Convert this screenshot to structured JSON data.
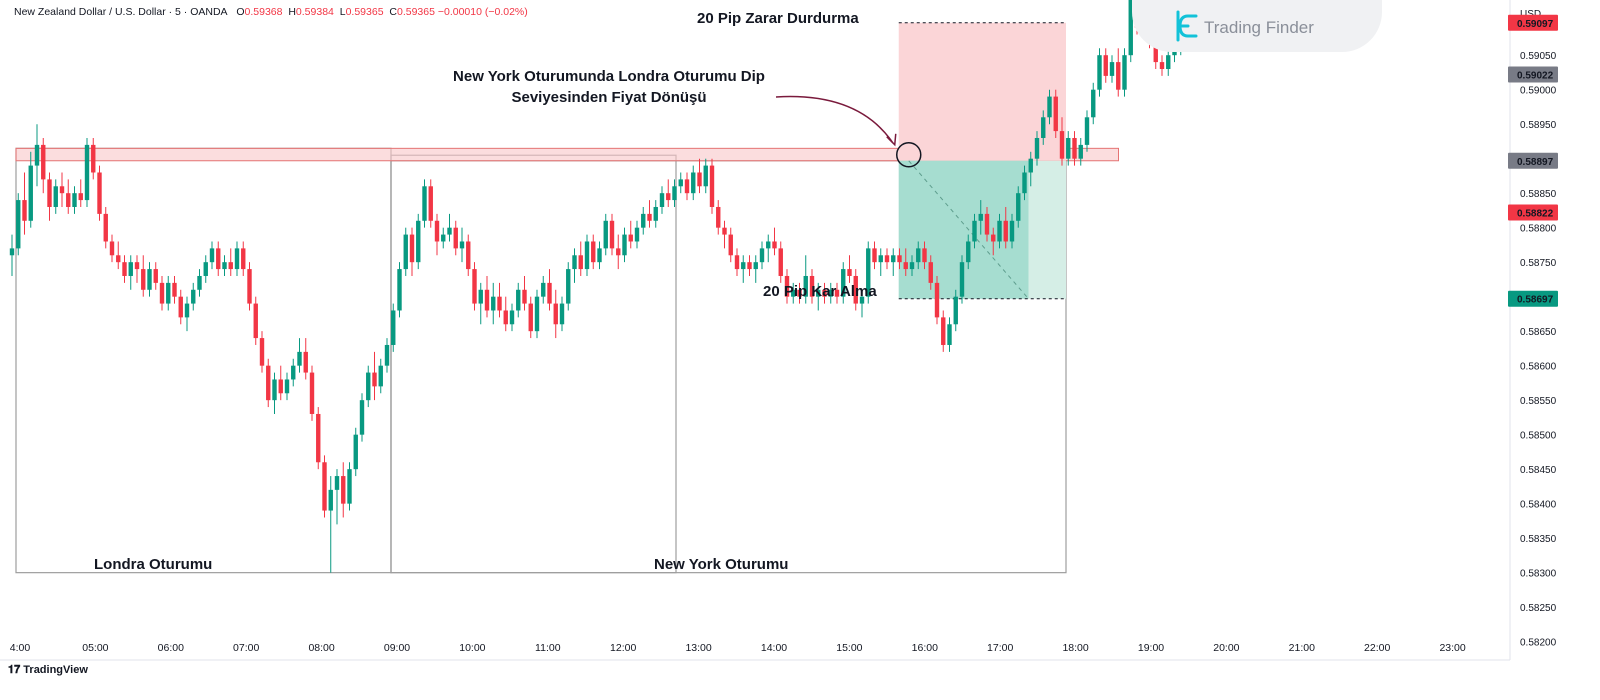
{
  "header": {
    "symbol": "New Zealand Dollar / U.S. Dollar · 5 · OANDA",
    "o_key": "O",
    "o_val": "0.59368",
    "h_key": "H",
    "h_val": "0.59384",
    "l_key": "L",
    "l_val": "0.59365",
    "c_key": "C",
    "c_val": "0.59365 −0.00010 (−0.02%)"
  },
  "brand": {
    "name": "Trading Finder"
  },
  "footer": {
    "logo_text": "TradingView"
  },
  "annotations": {
    "stop_loss": "20 Pip Zarar Durdurma",
    "take_profit": "20 Pip Kar Alma",
    "reversal_line1": "New York Oturumunda Londra Oturumu Dip",
    "reversal_line2": "Seviyesinden Fiyat Dönüşü",
    "london_session": "Londra Oturumu",
    "ny_session": "New York Oturumu"
  },
  "chart_data": {
    "type": "candlestick",
    "symbol": "NZDUSD",
    "timeframe": "5",
    "currency": "USD",
    "ylim": [
      0.58185,
      0.5913
    ],
    "y_ticks": [
      "0.59050",
      "0.59000",
      "0.58950",
      "0.58850",
      "0.58800",
      "0.58750",
      "0.58650",
      "0.58600",
      "0.58550",
      "0.58500",
      "0.58450",
      "0.58400",
      "0.58350",
      "0.58300",
      "0.58250",
      "0.58200"
    ],
    "x_ticks": [
      "4:00",
      "05:00",
      "06:00",
      "07:00",
      "08:00",
      "09:00",
      "10:00",
      "11:00",
      "12:00",
      "13:00",
      "14:00",
      "15:00",
      "16:00",
      "17:00",
      "18:00",
      "19:00",
      "20:00",
      "21:00",
      "22:00",
      "23:00"
    ],
    "price_labels": [
      {
        "value": "0.59097",
        "color": "#f23645"
      },
      {
        "value": "0.59022",
        "color": "#787b86"
      },
      {
        "value": "0.58897",
        "color": "#787b86"
      },
      {
        "value": "0.58822",
        "color": "#f23645"
      },
      {
        "value": "0.58697",
        "color": "#089981"
      }
    ],
    "levels": {
      "london_low_zone": [
        0.58897,
        0.58915
      ],
      "entry": 0.58897,
      "stop_loss": 0.59097,
      "take_profit": 0.58697
    },
    "sessions": [
      {
        "name": "Londra Oturumu",
        "from": "04:00",
        "to": "09:00"
      },
      {
        "name": "New York Oturumu",
        "from": "09:00",
        "to": "18:00"
      }
    ],
    "candles": [
      [
        0.5876,
        0.5879,
        0.5873,
        0.5877
      ],
      [
        0.5877,
        0.5885,
        0.5876,
        0.5884
      ],
      [
        0.5884,
        0.5888,
        0.5879,
        0.5881
      ],
      [
        0.5881,
        0.5891,
        0.588,
        0.5889
      ],
      [
        0.5889,
        0.5895,
        0.5886,
        0.5892
      ],
      [
        0.5892,
        0.5893,
        0.5885,
        0.5887
      ],
      [
        0.5887,
        0.5888,
        0.5881,
        0.5883
      ],
      [
        0.5883,
        0.5887,
        0.5882,
        0.5886
      ],
      [
        0.5886,
        0.5888,
        0.5883,
        0.5885
      ],
      [
        0.5885,
        0.5887,
        0.5882,
        0.5883
      ],
      [
        0.5883,
        0.5886,
        0.5882,
        0.5885
      ],
      [
        0.5885,
        0.5887,
        0.5883,
        0.5884
      ],
      [
        0.5884,
        0.5893,
        0.5883,
        0.5892
      ],
      [
        0.5892,
        0.5893,
        0.5887,
        0.5888
      ],
      [
        0.5888,
        0.5889,
        0.5881,
        0.5882
      ],
      [
        0.5882,
        0.5883,
        0.5877,
        0.5878
      ],
      [
        0.5878,
        0.5879,
        0.5875,
        0.5876
      ],
      [
        0.5876,
        0.5878,
        0.5874,
        0.5875
      ],
      [
        0.5875,
        0.5876,
        0.5872,
        0.5873
      ],
      [
        0.5873,
        0.5876,
        0.5871,
        0.5875
      ],
      [
        0.5875,
        0.5876,
        0.5872,
        0.5874
      ],
      [
        0.5874,
        0.5876,
        0.587,
        0.5871
      ],
      [
        0.5871,
        0.5875,
        0.587,
        0.5874
      ],
      [
        0.5874,
        0.5875,
        0.5871,
        0.5872
      ],
      [
        0.5872,
        0.5873,
        0.5868,
        0.5869
      ],
      [
        0.5869,
        0.5873,
        0.5868,
        0.5872
      ],
      [
        0.5872,
        0.5873,
        0.5869,
        0.587
      ],
      [
        0.587,
        0.5871,
        0.5866,
        0.5867
      ],
      [
        0.5867,
        0.587,
        0.5865,
        0.5869
      ],
      [
        0.5869,
        0.5872,
        0.5868,
        0.5871
      ],
      [
        0.5871,
        0.5874,
        0.587,
        0.5873
      ],
      [
        0.5873,
        0.5876,
        0.5872,
        0.5875
      ],
      [
        0.5875,
        0.5878,
        0.5874,
        0.5877
      ],
      [
        0.5877,
        0.5878,
        0.5873,
        0.5874
      ],
      [
        0.5874,
        0.5876,
        0.5873,
        0.5875
      ],
      [
        0.5875,
        0.5877,
        0.5873,
        0.5874
      ],
      [
        0.5874,
        0.5878,
        0.5873,
        0.5877
      ],
      [
        0.5877,
        0.5878,
        0.5873,
        0.5874
      ],
      [
        0.5874,
        0.5875,
        0.5868,
        0.5869
      ],
      [
        0.5869,
        0.587,
        0.5863,
        0.5864
      ],
      [
        0.5864,
        0.5865,
        0.5859,
        0.586
      ],
      [
        0.586,
        0.5861,
        0.5854,
        0.5855
      ],
      [
        0.5855,
        0.5859,
        0.5853,
        0.5858
      ],
      [
        0.5858,
        0.586,
        0.5855,
        0.5856
      ],
      [
        0.5856,
        0.5859,
        0.5855,
        0.5858
      ],
      [
        0.5858,
        0.5861,
        0.5857,
        0.586
      ],
      [
        0.586,
        0.5864,
        0.5859,
        0.5862
      ],
      [
        0.5862,
        0.5864,
        0.5858,
        0.5859
      ],
      [
        0.5859,
        0.586,
        0.5852,
        0.5853
      ],
      [
        0.5853,
        0.5854,
        0.5845,
        0.5846
      ],
      [
        0.5846,
        0.5847,
        0.5838,
        0.5839
      ],
      [
        0.5839,
        0.5844,
        0.583,
        0.5842
      ],
      [
        0.5842,
        0.5845,
        0.5837,
        0.5844
      ],
      [
        0.5844,
        0.5846,
        0.5838,
        0.584
      ],
      [
        0.584,
        0.5846,
        0.5839,
        0.5845
      ],
      [
        0.5845,
        0.5851,
        0.5844,
        0.585
      ],
      [
        0.585,
        0.5856,
        0.5849,
        0.5855
      ],
      [
        0.5855,
        0.586,
        0.5854,
        0.5859
      ],
      [
        0.5859,
        0.5862,
        0.5855,
        0.5857
      ],
      [
        0.5857,
        0.5861,
        0.5856,
        0.586
      ],
      [
        0.586,
        0.5864,
        0.5859,
        0.5863
      ],
      [
        0.5863,
        0.5869,
        0.5862,
        0.5868
      ],
      [
        0.5868,
        0.5875,
        0.5867,
        0.5874
      ],
      [
        0.5874,
        0.588,
        0.5873,
        0.5879
      ],
      [
        0.5879,
        0.588,
        0.5873,
        0.5875
      ],
      [
        0.5875,
        0.5882,
        0.5874,
        0.5881
      ],
      [
        0.5881,
        0.5887,
        0.588,
        0.5886
      ],
      [
        0.5886,
        0.5887,
        0.588,
        0.5881
      ],
      [
        0.5881,
        0.5882,
        0.5876,
        0.5878
      ],
      [
        0.5878,
        0.588,
        0.5877,
        0.5879
      ],
      [
        0.5879,
        0.5882,
        0.5878,
        0.588
      ],
      [
        0.588,
        0.5881,
        0.5876,
        0.5877
      ],
      [
        0.5877,
        0.588,
        0.5875,
        0.5878
      ],
      [
        0.5878,
        0.5879,
        0.5873,
        0.5874
      ],
      [
        0.5874,
        0.5875,
        0.5868,
        0.5869
      ],
      [
        0.5869,
        0.5872,
        0.5866,
        0.5871
      ],
      [
        0.5871,
        0.5873,
        0.5867,
        0.5868
      ],
      [
        0.5868,
        0.5872,
        0.5866,
        0.587
      ],
      [
        0.587,
        0.5872,
        0.5867,
        0.5868
      ],
      [
        0.5868,
        0.587,
        0.5865,
        0.5866
      ],
      [
        0.5866,
        0.5869,
        0.5865,
        0.5868
      ],
      [
        0.5868,
        0.5872,
        0.5867,
        0.5871
      ],
      [
        0.5871,
        0.5873,
        0.5868,
        0.5869
      ],
      [
        0.5869,
        0.587,
        0.5864,
        0.5865
      ],
      [
        0.5865,
        0.5871,
        0.5864,
        0.587
      ],
      [
        0.587,
        0.5873,
        0.5869,
        0.5872
      ],
      [
        0.5872,
        0.5874,
        0.5868,
        0.5869
      ],
      [
        0.5869,
        0.5871,
        0.5864,
        0.5866
      ],
      [
        0.5866,
        0.587,
        0.5865,
        0.5869
      ],
      [
        0.5869,
        0.5875,
        0.5868,
        0.5874
      ],
      [
        0.5874,
        0.5877,
        0.5872,
        0.5876
      ],
      [
        0.5876,
        0.5878,
        0.5873,
        0.5874
      ],
      [
        0.5874,
        0.5879,
        0.5873,
        0.5878
      ],
      [
        0.5878,
        0.5879,
        0.5874,
        0.5875
      ],
      [
        0.5875,
        0.5878,
        0.5874,
        0.5877
      ],
      [
        0.5877,
        0.5882,
        0.5876,
        0.5881
      ],
      [
        0.5881,
        0.5882,
        0.5876,
        0.5877
      ],
      [
        0.5877,
        0.5879,
        0.5874,
        0.5876
      ],
      [
        0.5876,
        0.588,
        0.5875,
        0.5879
      ],
      [
        0.5879,
        0.5881,
        0.5877,
        0.5878
      ],
      [
        0.5878,
        0.5881,
        0.5877,
        0.588
      ],
      [
        0.588,
        0.5883,
        0.5879,
        0.5882
      ],
      [
        0.5882,
        0.5884,
        0.588,
        0.5881
      ],
      [
        0.5881,
        0.5884,
        0.588,
        0.5883
      ],
      [
        0.5883,
        0.5886,
        0.5882,
        0.5885
      ],
      [
        0.5885,
        0.5887,
        0.5883,
        0.5884
      ],
      [
        0.5884,
        0.5887,
        0.5883,
        0.5886
      ],
      [
        0.5886,
        0.5888,
        0.5885,
        0.5887
      ],
      [
        0.5887,
        0.5888,
        0.5884,
        0.5885
      ],
      [
        0.5885,
        0.5889,
        0.5884,
        0.5888
      ],
      [
        0.5888,
        0.589,
        0.5885,
        0.5886
      ],
      [
        0.5886,
        0.589,
        0.5885,
        0.5889
      ],
      [
        0.5889,
        0.589,
        0.5882,
        0.5883
      ],
      [
        0.5883,
        0.5884,
        0.5879,
        0.588
      ],
      [
        0.588,
        0.5881,
        0.5877,
        0.5879
      ],
      [
        0.5879,
        0.588,
        0.5875,
        0.5876
      ],
      [
        0.5876,
        0.5877,
        0.5873,
        0.5874
      ],
      [
        0.5874,
        0.5876,
        0.5872,
        0.5875
      ],
      [
        0.5875,
        0.5876,
        0.5873,
        0.5874
      ],
      [
        0.5874,
        0.5876,
        0.5872,
        0.5875
      ],
      [
        0.5875,
        0.5878,
        0.5874,
        0.5877
      ],
      [
        0.5877,
        0.5879,
        0.5875,
        0.5878
      ],
      [
        0.5878,
        0.588,
        0.5876,
        0.5877
      ],
      [
        0.5877,
        0.5878,
        0.5872,
        0.5873
      ],
      [
        0.5873,
        0.5874,
        0.5869,
        0.587
      ],
      [
        0.587,
        0.5872,
        0.5869,
        0.5871
      ],
      [
        0.5871,
        0.5872,
        0.5869,
        0.587
      ],
      [
        0.587,
        0.5876,
        0.5869,
        0.5873
      ],
      [
        0.5873,
        0.5874,
        0.5869,
        0.587
      ],
      [
        0.587,
        0.5872,
        0.5868,
        0.5871
      ],
      [
        0.5871,
        0.5872,
        0.5869,
        0.587
      ],
      [
        0.587,
        0.5872,
        0.5869,
        0.5871
      ],
      [
        0.5871,
        0.5872,
        0.5869,
        0.587
      ],
      [
        0.587,
        0.5875,
        0.5869,
        0.5874
      ],
      [
        0.5874,
        0.5876,
        0.5872,
        0.5873
      ],
      [
        0.5873,
        0.5874,
        0.5868,
        0.5869
      ],
      [
        0.5869,
        0.5871,
        0.5867,
        0.587
      ],
      [
        0.587,
        0.5878,
        0.5869,
        0.5877
      ],
      [
        0.5877,
        0.5878,
        0.5874,
        0.5875
      ],
      [
        0.5875,
        0.5877,
        0.5873,
        0.5876
      ],
      [
        0.5876,
        0.5877,
        0.5874,
        0.5875
      ],
      [
        0.5875,
        0.5877,
        0.5873,
        0.5876
      ],
      [
        0.5876,
        0.5877,
        0.5874,
        0.5875
      ],
      [
        0.5875,
        0.5877,
        0.5873,
        0.5874
      ],
      [
        0.5874,
        0.5876,
        0.5873,
        0.5875
      ],
      [
        0.5875,
        0.5878,
        0.5874,
        0.5877
      ],
      [
        0.5877,
        0.5878,
        0.5874,
        0.5875
      ],
      [
        0.5875,
        0.5876,
        0.5871,
        0.5872
      ],
      [
        0.5872,
        0.5873,
        0.5866,
        0.5867
      ],
      [
        0.5867,
        0.5868,
        0.5862,
        0.5863
      ],
      [
        0.5863,
        0.5867,
        0.5862,
        0.5866
      ],
      [
        0.5866,
        0.5871,
        0.5865,
        0.587
      ],
      [
        0.587,
        0.5876,
        0.5869,
        0.5875
      ],
      [
        0.5875,
        0.5879,
        0.5874,
        0.5878
      ],
      [
        0.5878,
        0.5882,
        0.5877,
        0.5881
      ],
      [
        0.5881,
        0.5884,
        0.5879,
        0.5882
      ],
      [
        0.5882,
        0.5883,
        0.5878,
        0.5879
      ],
      [
        0.5879,
        0.588,
        0.5876,
        0.5878
      ],
      [
        0.5878,
        0.5882,
        0.5877,
        0.5881
      ],
      [
        0.5881,
        0.5883,
        0.5877,
        0.5878
      ],
      [
        0.5878,
        0.5882,
        0.5877,
        0.5881
      ],
      [
        0.5881,
        0.5886,
        0.588,
        0.5885
      ],
      [
        0.5885,
        0.5889,
        0.5884,
        0.5888
      ],
      [
        0.5888,
        0.5891,
        0.5886,
        0.589
      ],
      [
        0.589,
        0.5894,
        0.5889,
        0.5893
      ],
      [
        0.5893,
        0.5897,
        0.5892,
        0.5896
      ],
      [
        0.5896,
        0.59,
        0.5895,
        0.5899
      ],
      [
        0.5899,
        0.59,
        0.5893,
        0.5894
      ],
      [
        0.5894,
        0.5896,
        0.5889,
        0.589
      ],
      [
        0.589,
        0.5894,
        0.5889,
        0.5893
      ],
      [
        0.5893,
        0.5894,
        0.5889,
        0.589
      ],
      [
        0.589,
        0.5893,
        0.5889,
        0.5892
      ],
      [
        0.5892,
        0.5897,
        0.5891,
        0.5896
      ],
      [
        0.5896,
        0.5901,
        0.5895,
        0.59
      ],
      [
        0.59,
        0.5906,
        0.5899,
        0.5905
      ],
      [
        0.5905,
        0.5906,
        0.5901,
        0.5902
      ],
      [
        0.5902,
        0.5905,
        0.5901,
        0.5904
      ],
      [
        0.5904,
        0.5906,
        0.5899,
        0.59
      ],
      [
        0.59,
        0.5906,
        0.5899,
        0.5905
      ],
      [
        0.5905,
        0.5914,
        0.5904,
        0.5913
      ],
      [
        0.5913,
        0.5915,
        0.5908,
        0.5909
      ],
      [
        0.5909,
        0.5914,
        0.5908,
        0.5913
      ],
      [
        0.5913,
        0.5914,
        0.5906,
        0.5907
      ],
      [
        0.5907,
        0.5908,
        0.5903,
        0.5904
      ],
      [
        0.5904,
        0.5905,
        0.5902,
        0.5903
      ],
      [
        0.5903,
        0.5906,
        0.5902,
        0.5905
      ],
      [
        0.5905,
        0.5907,
        0.5904,
        0.5906
      ],
      [
        0.5906,
        0.5909,
        0.5905,
        0.5908
      ],
      [
        0.5908,
        0.591,
        0.5907,
        0.5909
      ],
      [
        0.5909,
        0.5911,
        0.5908,
        0.591
      ]
    ]
  }
}
